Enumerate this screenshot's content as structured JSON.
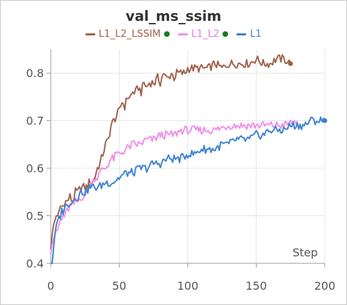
{
  "panel": {
    "title": "val_ms_ssim"
  },
  "chart_data": {
    "type": "line",
    "title": "val_ms_ssim",
    "xlabel": "Step",
    "ylabel": "",
    "xlim": [
      0,
      200
    ],
    "ylim": [
      0.4,
      0.85
    ],
    "x_ticks": [
      0,
      50,
      100,
      150,
      200
    ],
    "x_tick_labels": [
      "0",
      "50",
      "100",
      "150",
      "200"
    ],
    "y_ticks": [
      0.4,
      0.5,
      0.6,
      0.7,
      0.8
    ],
    "y_tick_labels": [
      "0.4",
      "0.5",
      "0.6",
      "0.7",
      "0.8"
    ],
    "grid": true,
    "legend_position": "top-center",
    "series": [
      {
        "name": "L1_L2_LSSIM",
        "color": "#a0614a",
        "pinned": true,
        "end_marker": true,
        "x": [
          0,
          1,
          2,
          3,
          4,
          5,
          6,
          7,
          8,
          9,
          10,
          12,
          14,
          16,
          18,
          20,
          22,
          24,
          26,
          28,
          30,
          32,
          34,
          36,
          38,
          40,
          42,
          44,
          46,
          48,
          50,
          52,
          54,
          56,
          58,
          60,
          62,
          64,
          66,
          68,
          70,
          72,
          74,
          76,
          78,
          80,
          82,
          84,
          86,
          88,
          90,
          92,
          94,
          96,
          98,
          100,
          105,
          110,
          115,
          120,
          125,
          130,
          135,
          140,
          145,
          150,
          155,
          160,
          165,
          170,
          175
        ],
        "values": [
          0.43,
          0.46,
          0.48,
          0.49,
          0.5,
          0.5,
          0.51,
          0.52,
          0.52,
          0.52,
          0.53,
          0.53,
          0.54,
          0.53,
          0.55,
          0.55,
          0.56,
          0.56,
          0.56,
          0.57,
          0.57,
          0.58,
          0.6,
          0.61,
          0.63,
          0.65,
          0.66,
          0.69,
          0.7,
          0.71,
          0.72,
          0.74,
          0.73,
          0.75,
          0.75,
          0.76,
          0.76,
          0.77,
          0.76,
          0.78,
          0.77,
          0.78,
          0.78,
          0.78,
          0.79,
          0.78,
          0.8,
          0.79,
          0.79,
          0.8,
          0.79,
          0.8,
          0.8,
          0.8,
          0.8,
          0.81,
          0.81,
          0.81,
          0.81,
          0.82,
          0.81,
          0.82,
          0.82,
          0.82,
          0.82,
          0.83,
          0.82,
          0.82,
          0.83,
          0.83,
          0.82
        ]
      },
      {
        "name": "L1_L2",
        "color": "#f08ee8",
        "pinned": true,
        "end_marker": false,
        "x": [
          0,
          1,
          2,
          3,
          4,
          5,
          6,
          7,
          8,
          9,
          10,
          12,
          14,
          16,
          18,
          20,
          22,
          24,
          26,
          28,
          30,
          32,
          34,
          36,
          38,
          40,
          42,
          44,
          46,
          48,
          50,
          55,
          60,
          65,
          70,
          75,
          80,
          85,
          90,
          95,
          100,
          110,
          120,
          130,
          140,
          150,
          160,
          170,
          180
        ],
        "values": [
          0.42,
          0.44,
          0.45,
          0.46,
          0.47,
          0.47,
          0.48,
          0.49,
          0.49,
          0.5,
          0.5,
          0.51,
          0.52,
          0.52,
          0.53,
          0.53,
          0.54,
          0.54,
          0.55,
          0.56,
          0.57,
          0.58,
          0.58,
          0.59,
          0.6,
          0.6,
          0.61,
          0.62,
          0.62,
          0.63,
          0.63,
          0.64,
          0.65,
          0.65,
          0.66,
          0.66,
          0.67,
          0.67,
          0.67,
          0.68,
          0.68,
          0.68,
          0.68,
          0.69,
          0.69,
          0.69,
          0.69,
          0.69,
          0.7
        ]
      },
      {
        "name": "L1",
        "color": "#3c82d0",
        "pinned": false,
        "end_marker": true,
        "x": [
          0,
          1,
          2,
          3,
          4,
          5,
          6,
          7,
          8,
          9,
          10,
          12,
          14,
          16,
          18,
          20,
          22,
          24,
          26,
          28,
          30,
          35,
          40,
          45,
          50,
          55,
          60,
          65,
          70,
          75,
          80,
          85,
          90,
          95,
          100,
          105,
          110,
          115,
          120,
          125,
          130,
          135,
          140,
          145,
          150,
          155,
          160,
          165,
          170,
          175,
          180,
          185,
          190,
          195,
          200
        ],
        "values": [
          0.4,
          0.4,
          0.43,
          0.46,
          0.48,
          0.49,
          0.5,
          0.5,
          0.51,
          0.51,
          0.52,
          0.52,
          0.53,
          0.53,
          0.54,
          0.54,
          0.55,
          0.55,
          0.55,
          0.56,
          0.56,
          0.56,
          0.57,
          0.57,
          0.58,
          0.59,
          0.59,
          0.6,
          0.6,
          0.61,
          0.61,
          0.62,
          0.62,
          0.62,
          0.63,
          0.63,
          0.64,
          0.64,
          0.64,
          0.65,
          0.65,
          0.66,
          0.66,
          0.66,
          0.67,
          0.67,
          0.68,
          0.68,
          0.68,
          0.69,
          0.69,
          0.69,
          0.7,
          0.7,
          0.7
        ]
      }
    ]
  }
}
